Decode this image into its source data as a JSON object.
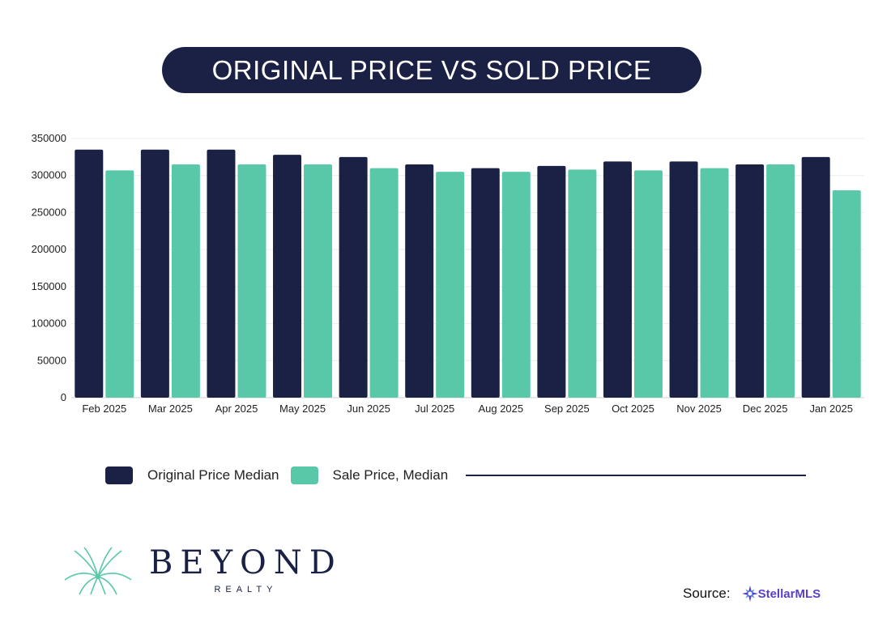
{
  "title": "ORIGINAL PRICE VS SOLD PRICE",
  "chart_data": {
    "type": "bar",
    "title": "ORIGINAL PRICE VS SOLD PRICE",
    "categories": [
      "Feb 2025",
      "Mar 2025",
      "Apr 2025",
      "May 2025",
      "Jun 2025",
      "Jul 2025",
      "Aug 2025",
      "Sep 2025",
      "Oct 2025",
      "Nov 2025",
      "Dec 2025",
      "Jan 2025"
    ],
    "series": [
      {
        "name": "Original Price Median",
        "color": "#1a2145",
        "values": [
          335000,
          335000,
          335000,
          328000,
          325000,
          315000,
          310000,
          313000,
          319000,
          319000,
          315000,
          325000
        ]
      },
      {
        "name": "Sale Price, Median",
        "color": "#58c8a9",
        "values": [
          307000,
          315000,
          315000,
          315000,
          310000,
          305000,
          305000,
          308000,
          307000,
          310000,
          315000,
          280000
        ]
      }
    ],
    "yticks": [
      "0",
      "50000",
      "100000",
      "150000",
      "200000",
      "250000",
      "300000",
      "350000"
    ],
    "ylim": [
      0,
      350000
    ],
    "xlabel": "",
    "ylabel": "",
    "grid": true,
    "legend_position": "bottom"
  },
  "legend": {
    "items": [
      "Original Price Median",
      "Sale Price, Median"
    ]
  },
  "brand": {
    "name": "BEYOND",
    "sub": "REALTY"
  },
  "source": {
    "label": "Source:",
    "logo_text": "StellarMLS"
  }
}
